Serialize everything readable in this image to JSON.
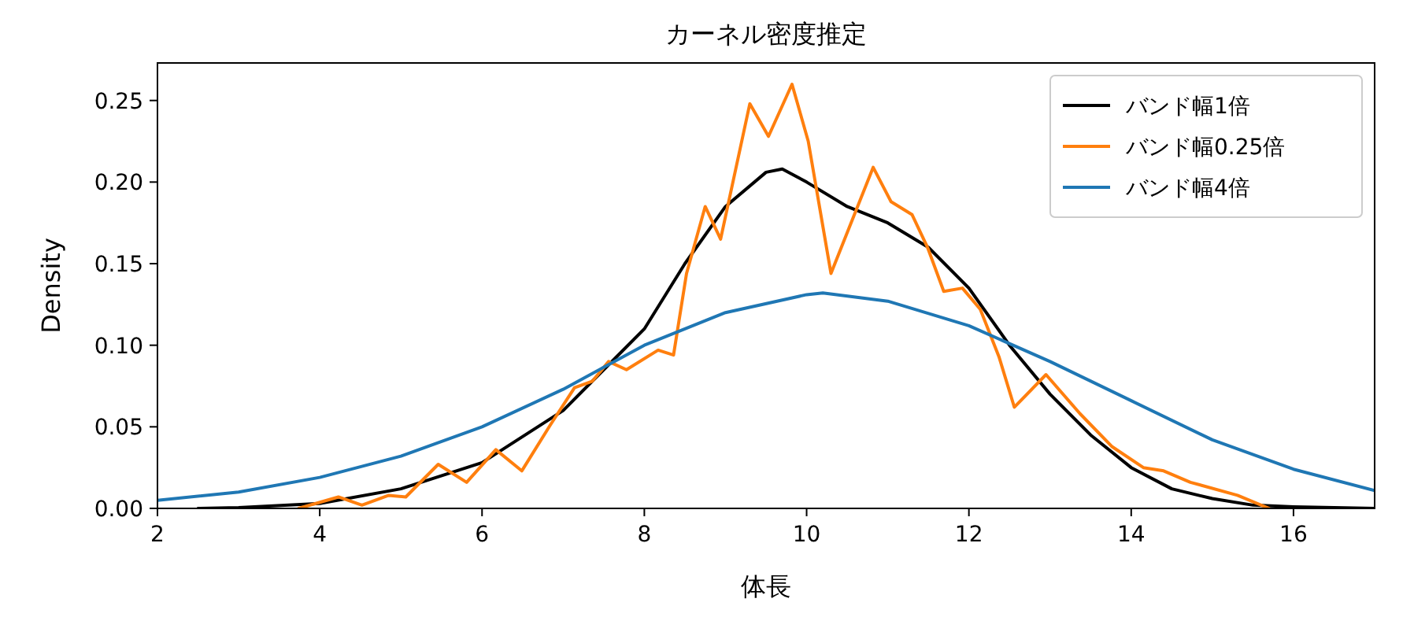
{
  "chart_data": {
    "type": "line",
    "title": "カーネル密度推定",
    "xlabel": "体長",
    "ylabel": "Density",
    "xlim": [
      2,
      17
    ],
    "ylim": [
      0,
      0.273
    ],
    "xticks": [
      2,
      4,
      6,
      8,
      10,
      12,
      14,
      16
    ],
    "yticks": [
      {
        "value": 0,
        "label": "0.00"
      },
      {
        "value": 0.05,
        "label": "0.05"
      },
      {
        "value": 0.1,
        "label": "0.10"
      },
      {
        "value": 0.15,
        "label": "0.15"
      },
      {
        "value": 0.2,
        "label": "0.20"
      },
      {
        "value": 0.25,
        "label": "0.25"
      }
    ],
    "legend": "top right",
    "line_style": "solid",
    "series": [
      {
        "name": "バンド幅1倍",
        "color": "#000000",
        "x": [
          2.5,
          3,
          4,
          5,
          6,
          7,
          7.5,
          8,
          8.5,
          9,
          9.5,
          9.7,
          10,
          10.5,
          11,
          11.5,
          12,
          12.5,
          13,
          13.5,
          14,
          14.5,
          15,
          15.5,
          16,
          17
        ],
        "values": [
          0,
          0.0005,
          0.003,
          0.012,
          0.028,
          0.06,
          0.085,
          0.11,
          0.15,
          0.185,
          0.206,
          0.208,
          0.2,
          0.185,
          0.175,
          0.16,
          0.135,
          0.1,
          0.07,
          0.045,
          0.025,
          0.012,
          0.006,
          0.002,
          0.001,
          0
        ]
      },
      {
        "name": "バンド幅0.25倍",
        "color": "#ff7f0e",
        "x": [
          3.74,
          4.23,
          4.52,
          4.85,
          5.06,
          5.46,
          5.81,
          6.17,
          6.49,
          6.84,
          7.14,
          7.36,
          7.56,
          7.78,
          8.17,
          8.36,
          8.52,
          8.75,
          8.94,
          9.3,
          9.53,
          9.82,
          10.02,
          10.3,
          10.82,
          11.04,
          11.3,
          11.49,
          11.69,
          11.92,
          12.14,
          12.37,
          12.56,
          12.95,
          13.37,
          13.76,
          14.15,
          14.4,
          14.73,
          15.31,
          15.7
        ],
        "values": [
          0,
          0.007,
          0.002,
          0.008,
          0.007,
          0.027,
          0.016,
          0.036,
          0.023,
          0.051,
          0.074,
          0.078,
          0.09,
          0.085,
          0.097,
          0.094,
          0.144,
          0.185,
          0.165,
          0.248,
          0.228,
          0.26,
          0.225,
          0.144,
          0.209,
          0.188,
          0.18,
          0.16,
          0.133,
          0.135,
          0.122,
          0.093,
          0.062,
          0.082,
          0.058,
          0.038,
          0.025,
          0.023,
          0.016,
          0.008,
          0
        ]
      },
      {
        "name": "バンド幅4倍",
        "color": "#1f77b4",
        "x": [
          2,
          3,
          4,
          5,
          6,
          7,
          8,
          9,
          10,
          10.2,
          11,
          12,
          13,
          14,
          15,
          16,
          17
        ],
        "values": [
          0.005,
          0.01,
          0.019,
          0.032,
          0.05,
          0.073,
          0.1,
          0.12,
          0.131,
          0.132,
          0.127,
          0.112,
          0.09,
          0.066,
          0.042,
          0.024,
          0.011
        ]
      }
    ]
  }
}
